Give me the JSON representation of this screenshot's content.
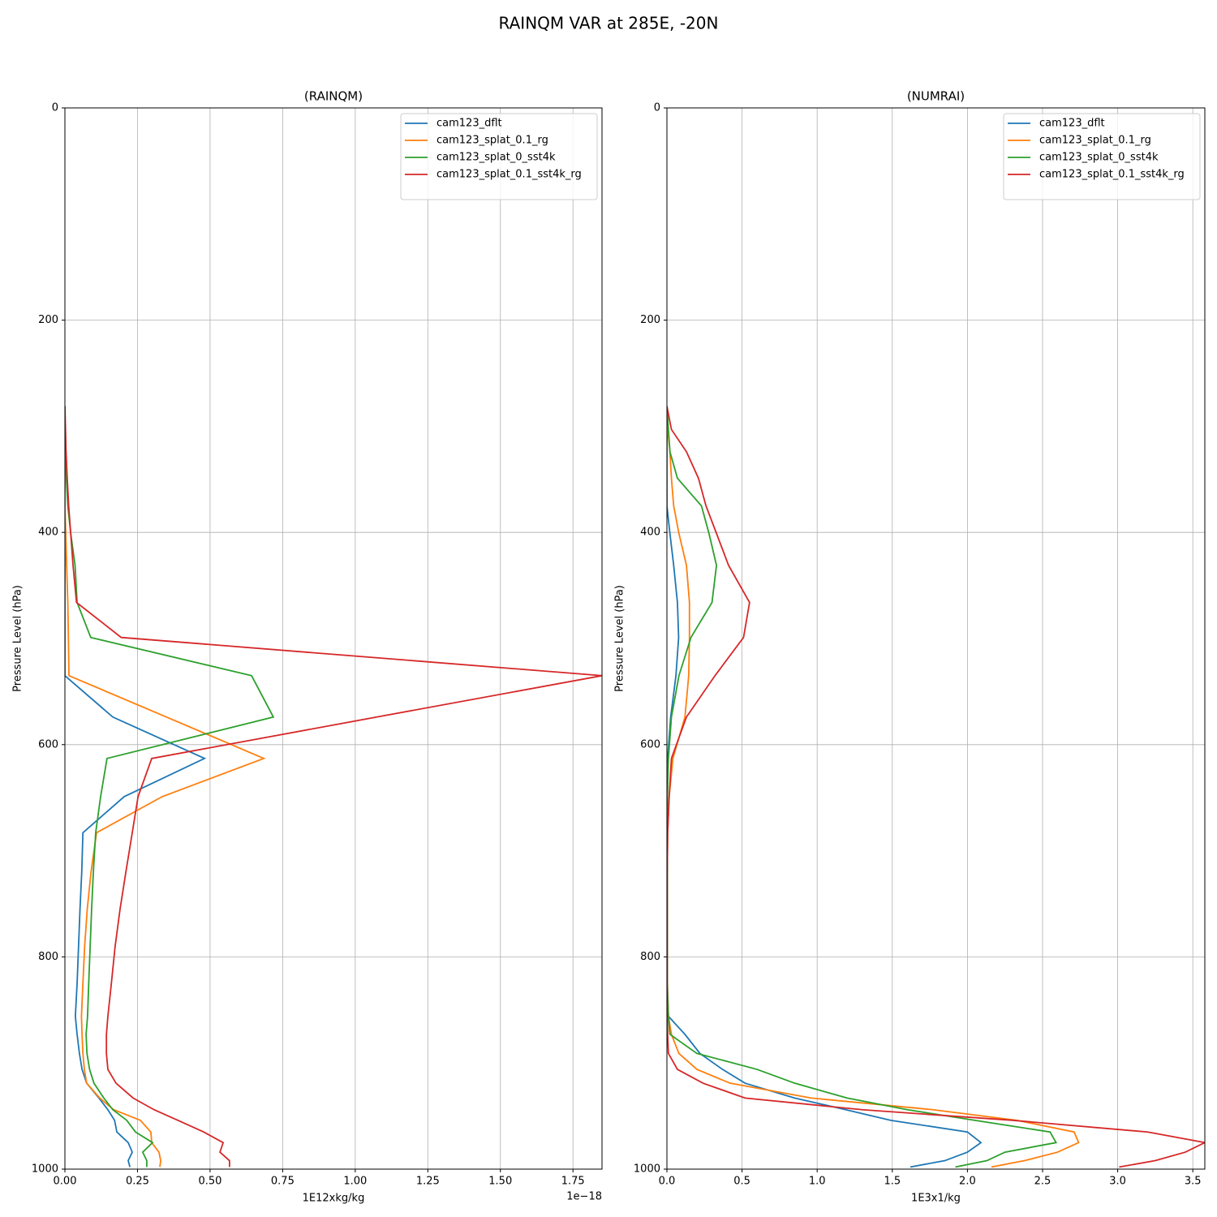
{
  "title": "RAINQM VAR at 285E, -20N",
  "chart_data": [
    {
      "type": "line",
      "title": "(RAINQM)",
      "xlabel": "1E12xkg/kg",
      "ylabel": "Pressure Level (hPa)",
      "x_offset_label": "1e−18",
      "y": [
        281,
        303,
        324,
        349,
        375,
        401,
        431,
        466,
        499,
        535,
        574,
        613,
        649,
        683,
        720,
        755,
        790,
        825,
        856,
        873,
        891,
        906,
        919,
        933,
        944,
        954,
        965,
        975,
        984,
        992,
        998
      ],
      "series": [
        {
          "name": "cam123_dflt",
          "color": "#1f77b4",
          "values": [
            0,
            0,
            0,
            0,
            0,
            0,
            0,
            0,
            0,
            0,
            0.165,
            0.481,
            0.204,
            0.062,
            0.058,
            0.052,
            0.047,
            0.042,
            0.036,
            0.042,
            0.05,
            0.059,
            0.075,
            0.117,
            0.148,
            0.171,
            0.179,
            0.218,
            0.232,
            0.218,
            0.224
          ]
        },
        {
          "name": "cam123_splat_0.1_rg",
          "color": "#ff7f0e",
          "values": [
            0,
            0,
            0,
            0,
            0,
            0.003,
            0.006,
            0.01,
            0.012,
            0.014,
            0.35,
            0.685,
            0.335,
            0.109,
            0.09,
            0.077,
            0.068,
            0.062,
            0.057,
            0.059,
            0.062,
            0.067,
            0.075,
            0.12,
            0.168,
            0.26,
            0.296,
            0.299,
            0.324,
            0.33,
            0.327
          ]
        },
        {
          "name": "cam123_splat_0_sst4k",
          "color": "#2ca02c",
          "values": [
            0,
            0,
            0,
            0.005,
            0.01,
            0.02,
            0.035,
            0.042,
            0.089,
            0.643,
            0.718,
            0.145,
            0.123,
            0.106,
            0.098,
            0.092,
            0.087,
            0.082,
            0.078,
            0.073,
            0.076,
            0.085,
            0.1,
            0.134,
            0.165,
            0.213,
            0.243,
            0.302,
            0.268,
            0.282,
            0.282
          ]
        },
        {
          "name": "cam123_splat_0.1_sst4k_rg",
          "color": "#d62728",
          "values": [
            0,
            0.002,
            0.004,
            0.008,
            0.013,
            0.02,
            0.028,
            0.04,
            0.194,
            1.85,
            1.074,
            0.299,
            0.252,
            0.232,
            0.21,
            0.19,
            0.173,
            0.16,
            0.148,
            0.143,
            0.143,
            0.148,
            0.176,
            0.235,
            0.307,
            0.389,
            0.478,
            0.545,
            0.534,
            0.567,
            0.567
          ]
        }
      ],
      "xlim": [
        0,
        1.85
      ],
      "xticks": [
        {
          "value": 0,
          "label": "0.00"
        },
        {
          "value": 0.25,
          "label": "0.25"
        },
        {
          "value": 0.5,
          "label": "0.50"
        },
        {
          "value": 0.75,
          "label": "0.75"
        },
        {
          "value": 1,
          "label": "1.00"
        },
        {
          "value": 1.25,
          "label": "1.25"
        },
        {
          "value": 1.5,
          "label": "1.50"
        },
        {
          "value": 1.75,
          "label": "1.75"
        }
      ],
      "ylim": [
        1000,
        0
      ],
      "yticks": [
        0,
        200,
        400,
        600,
        800,
        1000
      ],
      "grid": true,
      "legend": "upper right"
    },
    {
      "type": "line",
      "title": "(NUMRAI)",
      "xlabel": "1E3x1/kg",
      "ylabel": "Pressure Level (hPa)",
      "y": [
        281,
        303,
        324,
        349,
        375,
        401,
        431,
        466,
        499,
        535,
        574,
        613,
        649,
        683,
        720,
        755,
        790,
        825,
        856,
        873,
        891,
        906,
        919,
        933,
        944,
        954,
        965,
        975,
        984,
        992,
        998
      ],
      "series": [
        {
          "name": "cam123_dflt",
          "color": "#1f77b4",
          "values": [
            0,
            0,
            0,
            0,
            0,
            0.02,
            0.045,
            0.07,
            0.078,
            0.06,
            0.025,
            0.005,
            0,
            0,
            0,
            0,
            0,
            0,
            0.01,
            0.12,
            0.22,
            0.37,
            0.52,
            0.85,
            1.19,
            1.49,
            2.0,
            2.09,
            2.0,
            1.85,
            1.62
          ]
        },
        {
          "name": "cam123_splat_0.1_rg",
          "color": "#ff7f0e",
          "values": [
            0,
            0.005,
            0.02,
            0.03,
            0.045,
            0.08,
            0.13,
            0.15,
            0.15,
            0.145,
            0.12,
            0.04,
            0.015,
            0.005,
            0.002,
            0.002,
            0.002,
            0.002,
            0.01,
            0.03,
            0.08,
            0.2,
            0.42,
            0.96,
            1.77,
            2.33,
            2.71,
            2.74,
            2.6,
            2.38,
            2.16
          ]
        },
        {
          "name": "cam123_splat_0_sst4k",
          "color": "#2ca02c",
          "values": [
            0,
            0.01,
            0.02,
            0.07,
            0.23,
            0.28,
            0.33,
            0.3,
            0.16,
            0.08,
            0.03,
            0.01,
            0.003,
            0.003,
            0.003,
            0.003,
            0.003,
            0.003,
            0.01,
            0.02,
            0.2,
            0.6,
            0.85,
            1.2,
            1.6,
            2.05,
            2.55,
            2.59,
            2.25,
            2.13,
            1.92
          ]
        },
        {
          "name": "cam123_splat_0.1_sst4k_rg",
          "color": "#d62728",
          "values": [
            0,
            0.03,
            0.13,
            0.21,
            0.26,
            0.33,
            0.41,
            0.55,
            0.51,
            0.32,
            0.13,
            0.03,
            0.015,
            0.005,
            0.002,
            0.002,
            0.002,
            0.002,
            0.002,
            0.005,
            0.01,
            0.07,
            0.24,
            0.52,
            1.3,
            2.3,
            3.2,
            3.58,
            3.45,
            3.25,
            3.01
          ]
        }
      ],
      "xlim": [
        0,
        3.58
      ],
      "xticks": [
        {
          "value": 0,
          "label": "0.0"
        },
        {
          "value": 0.5,
          "label": "0.5"
        },
        {
          "value": 1,
          "label": "1.0"
        },
        {
          "value": 1.5,
          "label": "1.5"
        },
        {
          "value": 2,
          "label": "2.0"
        },
        {
          "value": 2.5,
          "label": "2.5"
        },
        {
          "value": 3,
          "label": "3.0"
        },
        {
          "value": 3.5,
          "label": "3.5"
        }
      ],
      "ylim": [
        1000,
        0
      ],
      "yticks": [
        0,
        200,
        400,
        600,
        800,
        1000
      ],
      "grid": true,
      "legend": "upper right"
    }
  ]
}
